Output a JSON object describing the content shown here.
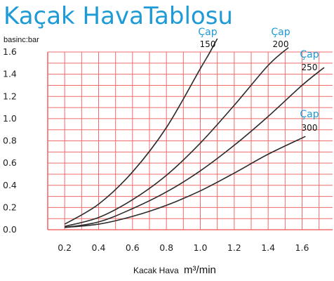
{
  "chart_data": {
    "type": "line",
    "title": "Kaçak HavaTablosu",
    "ylabel": "basinc:bar",
    "xlabel": "Kacak Hava",
    "xunit": "m³/min",
    "x_ticks": [
      "0.2",
      "0.4",
      "0.6",
      "0.8",
      "1.0",
      "1.2",
      "1.4",
      "1.6"
    ],
    "y_ticks": [
      "0.0",
      "0.2",
      "0.4",
      "0.6",
      "0.8",
      "1.0",
      "1.2",
      "1.4",
      "1.6"
    ],
    "xlim": [
      0.1,
      1.78
    ],
    "ylim": [
      0,
      1.6
    ],
    "grid": true,
    "series_prefix": "Çap",
    "series": [
      {
        "name": "150",
        "x": [
          0.2,
          0.4,
          0.6,
          0.8,
          1.0,
          1.05,
          1.1
        ],
        "y": [
          0.05,
          0.23,
          0.52,
          0.92,
          1.45,
          1.58,
          1.72
        ]
      },
      {
        "name": "200",
        "x": [
          0.2,
          0.4,
          0.6,
          0.8,
          1.0,
          1.2,
          1.4,
          1.52
        ],
        "y": [
          0.03,
          0.11,
          0.27,
          0.49,
          0.78,
          1.12,
          1.48,
          1.64
        ]
      },
      {
        "name": "250",
        "x": [
          0.2,
          0.4,
          0.6,
          0.8,
          1.0,
          1.2,
          1.4,
          1.6,
          1.73
        ],
        "y": [
          0.02,
          0.07,
          0.19,
          0.34,
          0.53,
          0.76,
          1.02,
          1.3,
          1.46
        ]
      },
      {
        "name": "300",
        "x": [
          0.2,
          0.4,
          0.6,
          0.8,
          1.0,
          1.2,
          1.4,
          1.62
        ],
        "y": [
          0.02,
          0.05,
          0.12,
          0.22,
          0.35,
          0.51,
          0.68,
          0.84
        ]
      }
    ]
  }
}
